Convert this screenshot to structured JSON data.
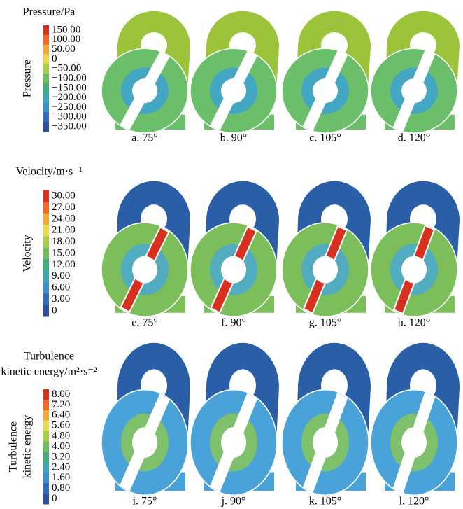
{
  "rows": [
    {
      "title": [
        "Pressure/Pa"
      ],
      "axis_label": [
        "Pressure"
      ],
      "ticks": [
        "150.00",
        "100.00",
        "50.00",
        "0",
        "−50.00",
        "−100.00",
        "−150.00",
        "−200.00",
        "−250.00",
        "−300.00",
        "−350.00"
      ],
      "captions": [
        "a. 75°",
        "b. 90°",
        "c. 105°",
        "d. 120°"
      ]
    },
    {
      "title": [
        "Velocity/m·s⁻¹"
      ],
      "axis_label": [
        "Velocity"
      ],
      "ticks": [
        "30.00",
        "27.00",
        "24.00",
        "21.00",
        "18.00",
        "15.00",
        "12.00",
        "9.00",
        "6.00",
        "3.00",
        "0"
      ],
      "captions": [
        "e. 75°",
        "f. 90°",
        "g. 105°",
        "h. 120°"
      ]
    },
    {
      "title": [
        "Turbulence",
        "kinetic energy/m²·s⁻²"
      ],
      "axis_label": [
        "Turbulence",
        "kinetic energy"
      ],
      "ticks": [
        "8.00",
        "7.20",
        "6.40",
        "5.60",
        "4.80",
        "4.00",
        "3.20",
        "2.40",
        "1.60",
        "0.80",
        "0"
      ],
      "captions": [
        "i. 75°",
        "j. 90°",
        "k. 105°",
        "l. 120°"
      ]
    }
  ]
}
